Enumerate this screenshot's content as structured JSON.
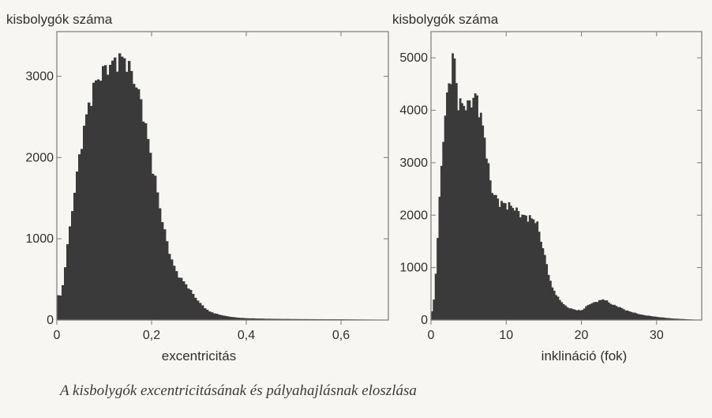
{
  "caption": "A kisbolygók excentricitásának és pályahajlásnak eloszlása",
  "colors": {
    "bars": "#3a3a3a",
    "axis": "#7a7a7a",
    "background": "#f7f6f3"
  },
  "chart_data": [
    {
      "type": "histogram",
      "ylabel": "kisbolygók száma",
      "xlabel": "excentricitás",
      "x_tick_labels": [
        "0",
        "0,2",
        "0,4",
        "0,6"
      ],
      "x_ticks": [
        0,
        0.2,
        0.4,
        0.6
      ],
      "y_tick_labels": [
        "0",
        "1000",
        "2000",
        "3000"
      ],
      "y_ticks": [
        0,
        1000,
        2000,
        3000
      ],
      "xlim": [
        0,
        0.7
      ],
      "ylim": [
        0,
        3550
      ],
      "grid": false,
      "bin_width": 0.005,
      "peak_bin_value": 3230,
      "peak_x": 0.14,
      "bin_centers": [
        0.01,
        0.02,
        0.03,
        0.04,
        0.05,
        0.06,
        0.07,
        0.08,
        0.09,
        0.1,
        0.11,
        0.12,
        0.13,
        0.14,
        0.15,
        0.16,
        0.17,
        0.18,
        0.19,
        0.2,
        0.21,
        0.22,
        0.23,
        0.24,
        0.25,
        0.26,
        0.27,
        0.28,
        0.29,
        0.3,
        0.32,
        0.34,
        0.36,
        0.38,
        0.4,
        0.45,
        0.5,
        0.55,
        0.6,
        0.65,
        0.7
      ],
      "counts": [
        300,
        800,
        1250,
        1700,
        2100,
        2450,
        2700,
        2900,
        3000,
        3080,
        3120,
        3170,
        3200,
        3230,
        3140,
        3000,
        2850,
        2620,
        2300,
        1950,
        1650,
        1300,
        1020,
        780,
        620,
        520,
        460,
        380,
        300,
        220,
        110,
        70,
        45,
        30,
        22,
        15,
        12,
        10,
        9,
        6,
        4
      ]
    },
    {
      "type": "histogram",
      "ylabel": "kisbolygók száma",
      "xlabel": "inklináció (fok)",
      "x_tick_labels": [
        "0",
        "10",
        "20",
        "30"
      ],
      "x_ticks": [
        0,
        10,
        20,
        30
      ],
      "y_tick_labels": [
        "0",
        "1000",
        "2000",
        "3000",
        "4000",
        "5000"
      ],
      "y_ticks": [
        0,
        1000,
        2000,
        3000,
        4000,
        5000
      ],
      "xlim": [
        0,
        36
      ],
      "ylim": [
        0,
        5500
      ],
      "grid": false,
      "bin_width": 0.25,
      "peak_bin_value": 5200,
      "peak_x": 3,
      "bin_centers": [
        0,
        0.5,
        1,
        1.5,
        2,
        2.5,
        3,
        3.5,
        4,
        5,
        6,
        7,
        8,
        9,
        10,
        11,
        12,
        13,
        14,
        15,
        16,
        17,
        18,
        19,
        20,
        21,
        22,
        23,
        24,
        25,
        26,
        27,
        28,
        30,
        32,
        34,
        35
      ],
      "counts": [
        50,
        500,
        2000,
        3200,
        4200,
        4500,
        5200,
        4200,
        4100,
        4100,
        4300,
        3600,
        2500,
        2250,
        2200,
        2150,
        2000,
        1950,
        1900,
        1300,
        650,
        400,
        250,
        200,
        180,
        300,
        350,
        400,
        300,
        250,
        180,
        140,
        100,
        60,
        30,
        15,
        8
      ]
    }
  ]
}
